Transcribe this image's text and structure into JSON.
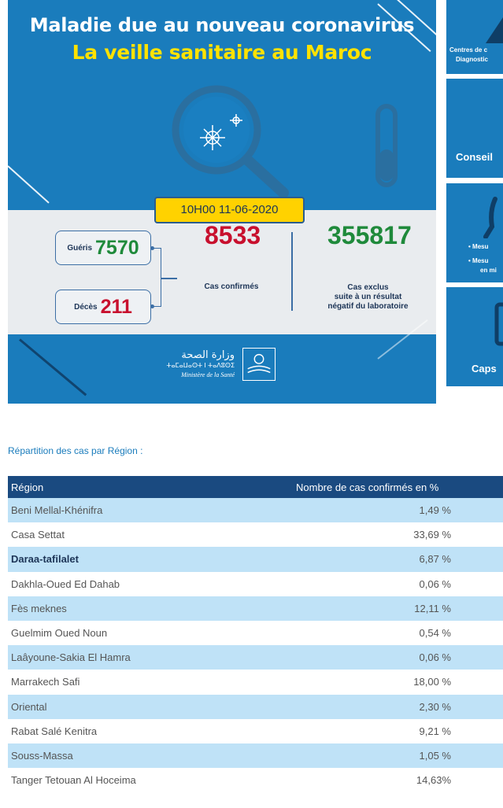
{
  "banner": {
    "title_line1": "Maladie due au nouveau coronavirus",
    "title_line2": "La veille sanitaire au Maroc",
    "date": "10H00  11-06-2020",
    "recovered_label": "Guéris",
    "recovered_value": "7570",
    "deaths_label": "Décès",
    "deaths_value": "211",
    "confirmed_value": "8533",
    "confirmed_label": "Cas confirmés",
    "excluded_value": "355817",
    "excluded_label_1": "Cas exclus",
    "excluded_label_2": "suite à un résultat",
    "excluded_label_3": "négatif du laboratoire",
    "ministry_ar": "وزارة الصحة",
    "ministry_tifinagh": "ⵜⴰⵎⴰⵡⴰⵙⵜ ⵏ ⵜⴰⴷⵓⵙⵉ",
    "ministry_fr": "Ministère de la Santé"
  },
  "tiles": {
    "tile1_line1": "Centres de c",
    "tile1_line2": "Diagnostic",
    "tile2_label": "Conseil",
    "tile3_line1": "• Mesu",
    "tile3_line2": "• Mesu",
    "tile3_line3": "en mi",
    "tile4_label": "Caps"
  },
  "section": {
    "heading": "Répartition des cas par Région :"
  },
  "table": {
    "col_region": "Région",
    "col_percent": "Nombre de cas confirmés en %",
    "rows": [
      {
        "region": "Beni Mellal-Khénifra",
        "percent": "1,49 %"
      },
      {
        "region": "Casa Settat",
        "percent": "33,69 %"
      },
      {
        "region": "Daraa-tafilalet",
        "percent": "6,87 %"
      },
      {
        "region": "Dakhla-Oued Ed Dahab",
        "percent": "0,06 %"
      },
      {
        "region": "Fès meknes",
        "percent": "12,11 %"
      },
      {
        "region": "Guelmim Oued Noun",
        "percent": "0,54 %"
      },
      {
        "region": "Laâyoune-Sakia El Hamra",
        "percent": "0,06 %"
      },
      {
        "region": "Marrakech Safi",
        "percent": "18,00 %"
      },
      {
        "region": "Oriental",
        "percent": "2,30 %"
      },
      {
        "region": "Rabat Salé Kenitra",
        "percent": "9,21 %"
      },
      {
        "region": "Souss-Massa",
        "percent": "1,05 %"
      },
      {
        "region": "Tanger Tetouan Al Hoceima",
        "percent": "14,63%"
      }
    ]
  },
  "colors": {
    "banner_blue": "#1a7cbc",
    "header_navy": "#1a4a80",
    "row_highlight": "#bfe2f7",
    "accent_yellow": "#ffd200",
    "green": "#1f8a3b",
    "red": "#c8102e"
  }
}
